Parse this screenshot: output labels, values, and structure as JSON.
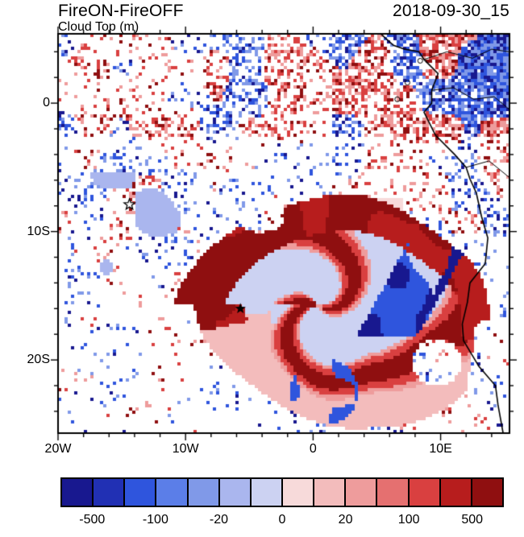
{
  "header": {
    "title": "FireON-FireOFF",
    "subtitle": "Cloud Top (m)",
    "datetime": "2018-09-30_15"
  },
  "chart_data": {
    "type": "heatmap",
    "title": "FireON-FireOFF",
    "variable": "Cloud Top (m)",
    "timestamp": "2018-09-30_15",
    "description": "Map of cloud-top height difference (FireON minus FireOFF, m) over the SE Atlantic and SW Africa coast. A large region of weak negative differences (pale lavender) is wrapped by strong positive bands (red, 100 to >500 m) with embedded negative streaks (blue), plus widespread small-scale positive/negative speckle to the north and over land near the coastline.",
    "x_axis": {
      "labels": [
        "20W",
        "10W",
        "0",
        "10E"
      ],
      "degrees": [
        -20,
        -10,
        0,
        10
      ],
      "min_deg": -20,
      "max_deg": 15.4
    },
    "y_axis": {
      "labels": [
        "0",
        "10S",
        "20S"
      ],
      "degrees": [
        0,
        -10,
        -20
      ],
      "min_deg": -25.7,
      "max_deg": 5.4
    },
    "colorbar": {
      "labels": [
        "-500",
        "-100",
        "-20",
        "0",
        "20",
        "100",
        "500"
      ],
      "levels": [
        -500,
        -200,
        -100,
        -50,
        -20,
        -10,
        0,
        10,
        20,
        50,
        100,
        200,
        500
      ],
      "colors": [
        "#18188f",
        "#2130b4",
        "#2f55dd",
        "#5b7ee8",
        "#8099e8",
        "#aab6ee",
        "#ccd2f2",
        "#f7dada",
        "#f3bcbc",
        "#ee9c9c",
        "#e57070",
        "#d94040",
        "#b71d1d",
        "#8f0f10"
      ]
    },
    "markers": [
      {
        "lat": -7.9,
        "lon": -14.4,
        "style": "open-star"
      },
      {
        "lat": -16.0,
        "lon": -5.7,
        "style": "filled-star"
      }
    ]
  }
}
